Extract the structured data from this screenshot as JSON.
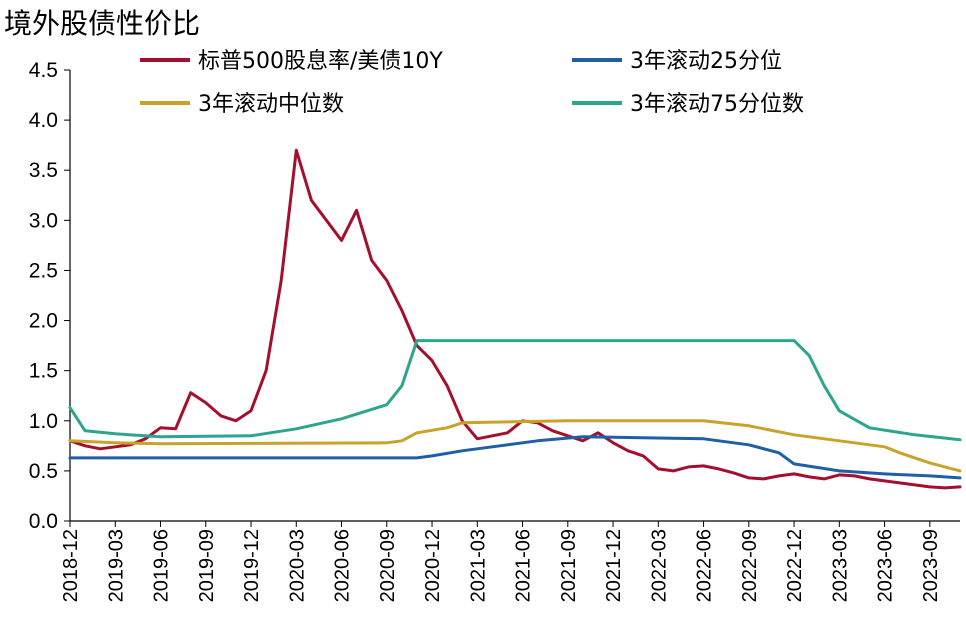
{
  "title": "境外股债性价比",
  "chart_data": {
    "type": "line",
    "title": "境外股债性价比",
    "ylim": [
      0,
      4.5
    ],
    "y_ticks": [
      "4.5",
      "4.0",
      "3.5",
      "3.0",
      "2.5",
      "2.0",
      "1.5",
      "1.0",
      "0.5",
      "0.0"
    ],
    "x_ticks": [
      "2018-12",
      "2019-03",
      "2019-06",
      "2019-09",
      "2019-12",
      "2020-03",
      "2020-06",
      "2020-09",
      "2020-12",
      "2021-03",
      "2021-06",
      "2021-09",
      "2021-12",
      "2022-03",
      "2022-06",
      "2022-09",
      "2022-12",
      "2023-03",
      "2023-06",
      "2023-09"
    ],
    "x_range": [
      "2018-12",
      "2023-11"
    ],
    "grid": false,
    "legend_position": "top",
    "series": [
      {
        "name": "标普500股息率/美债10Y",
        "color": "#A50F2D",
        "points": [
          [
            "2018-12",
            0.8
          ],
          [
            "2019-01",
            0.75
          ],
          [
            "2019-02",
            0.72
          ],
          [
            "2019-03",
            0.74
          ],
          [
            "2019-04",
            0.76
          ],
          [
            "2019-05",
            0.82
          ],
          [
            "2019-06",
            0.93
          ],
          [
            "2019-07",
            0.92
          ],
          [
            "2019-08",
            1.28
          ],
          [
            "2019-09",
            1.18
          ],
          [
            "2019-10",
            1.05
          ],
          [
            "2019-11",
            1.0
          ],
          [
            "2019-12",
            1.1
          ],
          [
            "2020-01",
            1.5
          ],
          [
            "2020-02",
            2.4
          ],
          [
            "2020-03",
            3.7
          ],
          [
            "2020-04",
            3.2
          ],
          [
            "2020-05",
            3.0
          ],
          [
            "2020-06",
            2.8
          ],
          [
            "2020-07",
            3.1
          ],
          [
            "2020-08",
            2.6
          ],
          [
            "2020-09",
            2.4
          ],
          [
            "2020-10",
            2.1
          ],
          [
            "2020-11",
            1.75
          ],
          [
            "2020-12",
            1.6
          ],
          [
            "2021-01",
            1.35
          ],
          [
            "2021-02",
            1.0
          ],
          [
            "2021-03",
            0.82
          ],
          [
            "2021-04",
            0.85
          ],
          [
            "2021-05",
            0.88
          ],
          [
            "2021-06",
            1.0
          ],
          [
            "2021-07",
            0.98
          ],
          [
            "2021-08",
            0.9
          ],
          [
            "2021-09",
            0.85
          ],
          [
            "2021-10",
            0.8
          ],
          [
            "2021-11",
            0.88
          ],
          [
            "2021-12",
            0.78
          ],
          [
            "2022-01",
            0.7
          ],
          [
            "2022-02",
            0.65
          ],
          [
            "2022-03",
            0.52
          ],
          [
            "2022-04",
            0.5
          ],
          [
            "2022-05",
            0.54
          ],
          [
            "2022-06",
            0.55
          ],
          [
            "2022-07",
            0.52
          ],
          [
            "2022-08",
            0.48
          ],
          [
            "2022-09",
            0.43
          ],
          [
            "2022-10",
            0.42
          ],
          [
            "2022-11",
            0.45
          ],
          [
            "2022-12",
            0.47
          ],
          [
            "2023-01",
            0.44
          ],
          [
            "2023-02",
            0.42
          ],
          [
            "2023-03",
            0.46
          ],
          [
            "2023-04",
            0.45
          ],
          [
            "2023-05",
            0.42
          ],
          [
            "2023-06",
            0.4
          ],
          [
            "2023-07",
            0.38
          ],
          [
            "2023-08",
            0.36
          ],
          [
            "2023-09",
            0.34
          ],
          [
            "2023-10",
            0.33
          ],
          [
            "2023-11",
            0.34
          ]
        ]
      },
      {
        "name": "3年滚动25分位",
        "color": "#1F5FA6",
        "points": [
          [
            "2018-12",
            0.63
          ],
          [
            "2020-11",
            0.63
          ],
          [
            "2020-12",
            0.65
          ],
          [
            "2021-02",
            0.7
          ],
          [
            "2021-04",
            0.74
          ],
          [
            "2021-07",
            0.8
          ],
          [
            "2021-10",
            0.84
          ],
          [
            "2022-06",
            0.82
          ],
          [
            "2022-09",
            0.76
          ],
          [
            "2022-11",
            0.68
          ],
          [
            "2022-12",
            0.57
          ],
          [
            "2023-03",
            0.5
          ],
          [
            "2023-06",
            0.47
          ],
          [
            "2023-09",
            0.45
          ],
          [
            "2023-11",
            0.43
          ]
        ]
      },
      {
        "name": "3年滚动中位数",
        "color": "#C9A22A",
        "points": [
          [
            "2018-12",
            0.8
          ],
          [
            "2019-03",
            0.78
          ],
          [
            "2019-06",
            0.77
          ],
          [
            "2020-09",
            0.78
          ],
          [
            "2020-10",
            0.8
          ],
          [
            "2020-11",
            0.88
          ],
          [
            "2021-01",
            0.93
          ],
          [
            "2021-02",
            0.98
          ],
          [
            "2021-09",
            1.0
          ],
          [
            "2022-06",
            1.0
          ],
          [
            "2022-09",
            0.95
          ],
          [
            "2022-12",
            0.86
          ],
          [
            "2023-03",
            0.8
          ],
          [
            "2023-06",
            0.74
          ],
          [
            "2023-07",
            0.68
          ],
          [
            "2023-09",
            0.58
          ],
          [
            "2023-11",
            0.5
          ]
        ]
      },
      {
        "name": "3年滚动75分位数",
        "color": "#2CA58D",
        "points": [
          [
            "2018-12",
            1.13
          ],
          [
            "2019-01",
            0.9
          ],
          [
            "2019-03",
            0.87
          ],
          [
            "2019-06",
            0.84
          ],
          [
            "2019-12",
            0.85
          ],
          [
            "2020-03",
            0.92
          ],
          [
            "2020-06",
            1.02
          ],
          [
            "2020-09",
            1.16
          ],
          [
            "2020-10",
            1.35
          ],
          [
            "2020-11",
            1.8
          ],
          [
            "2022-12",
            1.8
          ],
          [
            "2023-01",
            1.65
          ],
          [
            "2023-02",
            1.35
          ],
          [
            "2023-03",
            1.1
          ],
          [
            "2023-05",
            0.93
          ],
          [
            "2023-08",
            0.86
          ],
          [
            "2023-11",
            0.81
          ]
        ]
      }
    ]
  }
}
